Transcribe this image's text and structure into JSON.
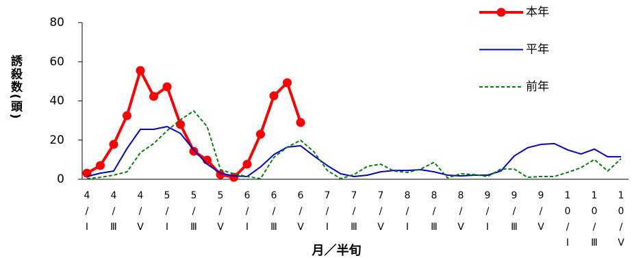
{
  "chart_data": {
    "type": "line",
    "y_label": "誘殺数(頭)",
    "x_label": "月／半旬",
    "categories": [
      "4/Ⅰ",
      null,
      "4/Ⅲ",
      null,
      "4/Ⅴ",
      null,
      "5/Ⅰ",
      null,
      "5/Ⅲ",
      null,
      "5/Ⅴ",
      null,
      "6/Ⅰ",
      null,
      "6/Ⅲ",
      null,
      "6/Ⅴ",
      null,
      "7/Ⅰ",
      null,
      "7/Ⅲ",
      null,
      "7/Ⅴ",
      null,
      "8/Ⅰ",
      null,
      "8/Ⅲ",
      null,
      "8/Ⅴ",
      null,
      "9/Ⅰ",
      null,
      "9/Ⅲ",
      null,
      "9/Ⅴ",
      null,
      "10/Ⅰ",
      null,
      "10/Ⅲ",
      null,
      "10/Ⅴ"
    ],
    "series": [
      {
        "name": "本年",
        "color": "#ff0000",
        "style": "marker",
        "values": [
          3.1,
          7,
          17.8,
          32.5,
          55.5,
          42.3,
          47.2,
          28,
          14.3,
          9.8,
          2.4,
          1,
          7.7,
          23,
          42.6,
          49.3,
          29,
          null,
          null,
          null,
          null,
          null,
          null,
          null,
          null,
          null,
          null,
          null,
          null,
          null,
          null,
          null,
          null,
          null,
          null,
          null,
          null,
          null,
          null,
          null,
          null
        ]
      },
      {
        "name": "平年",
        "color": "#0000cc",
        "style": "solid",
        "values": [
          1.4,
          3.1,
          4.2,
          15.7,
          25.5,
          25.5,
          26.9,
          23.4,
          15,
          7.7,
          3.1,
          1.7,
          1.4,
          6.3,
          12.6,
          16.4,
          17.1,
          11.9,
          7,
          2.8,
          1.4,
          2.1,
          3.8,
          4.5,
          4.5,
          4.9,
          3.8,
          2.1,
          1.7,
          2.1,
          2.1,
          4.2,
          11.9,
          16.1,
          17.8,
          18.2,
          15,
          12.9,
          15.4,
          11.5,
          11.5
        ]
      },
      {
        "name": "前年",
        "color": "#008000",
        "style": "dashed",
        "values": [
          0.3,
          1,
          2.1,
          3.8,
          13.6,
          18.2,
          24.8,
          30.4,
          34.9,
          26.9,
          4.9,
          2.8,
          1.4,
          0.3,
          11.2,
          16.4,
          19.9,
          14,
          4.5,
          0.3,
          2.4,
          6.6,
          7.7,
          4.2,
          3.5,
          5.2,
          8.7,
          0.7,
          2.8,
          2.4,
          1.4,
          5.2,
          5.2,
          1,
          1.4,
          1.4,
          3.5,
          5.9,
          10.1,
          4.2,
          10.5
        ]
      }
    ],
    "ylim": [
      0,
      80
    ],
    "yticks": [
      0,
      20,
      40,
      60,
      80
    ],
    "grid": false
  }
}
